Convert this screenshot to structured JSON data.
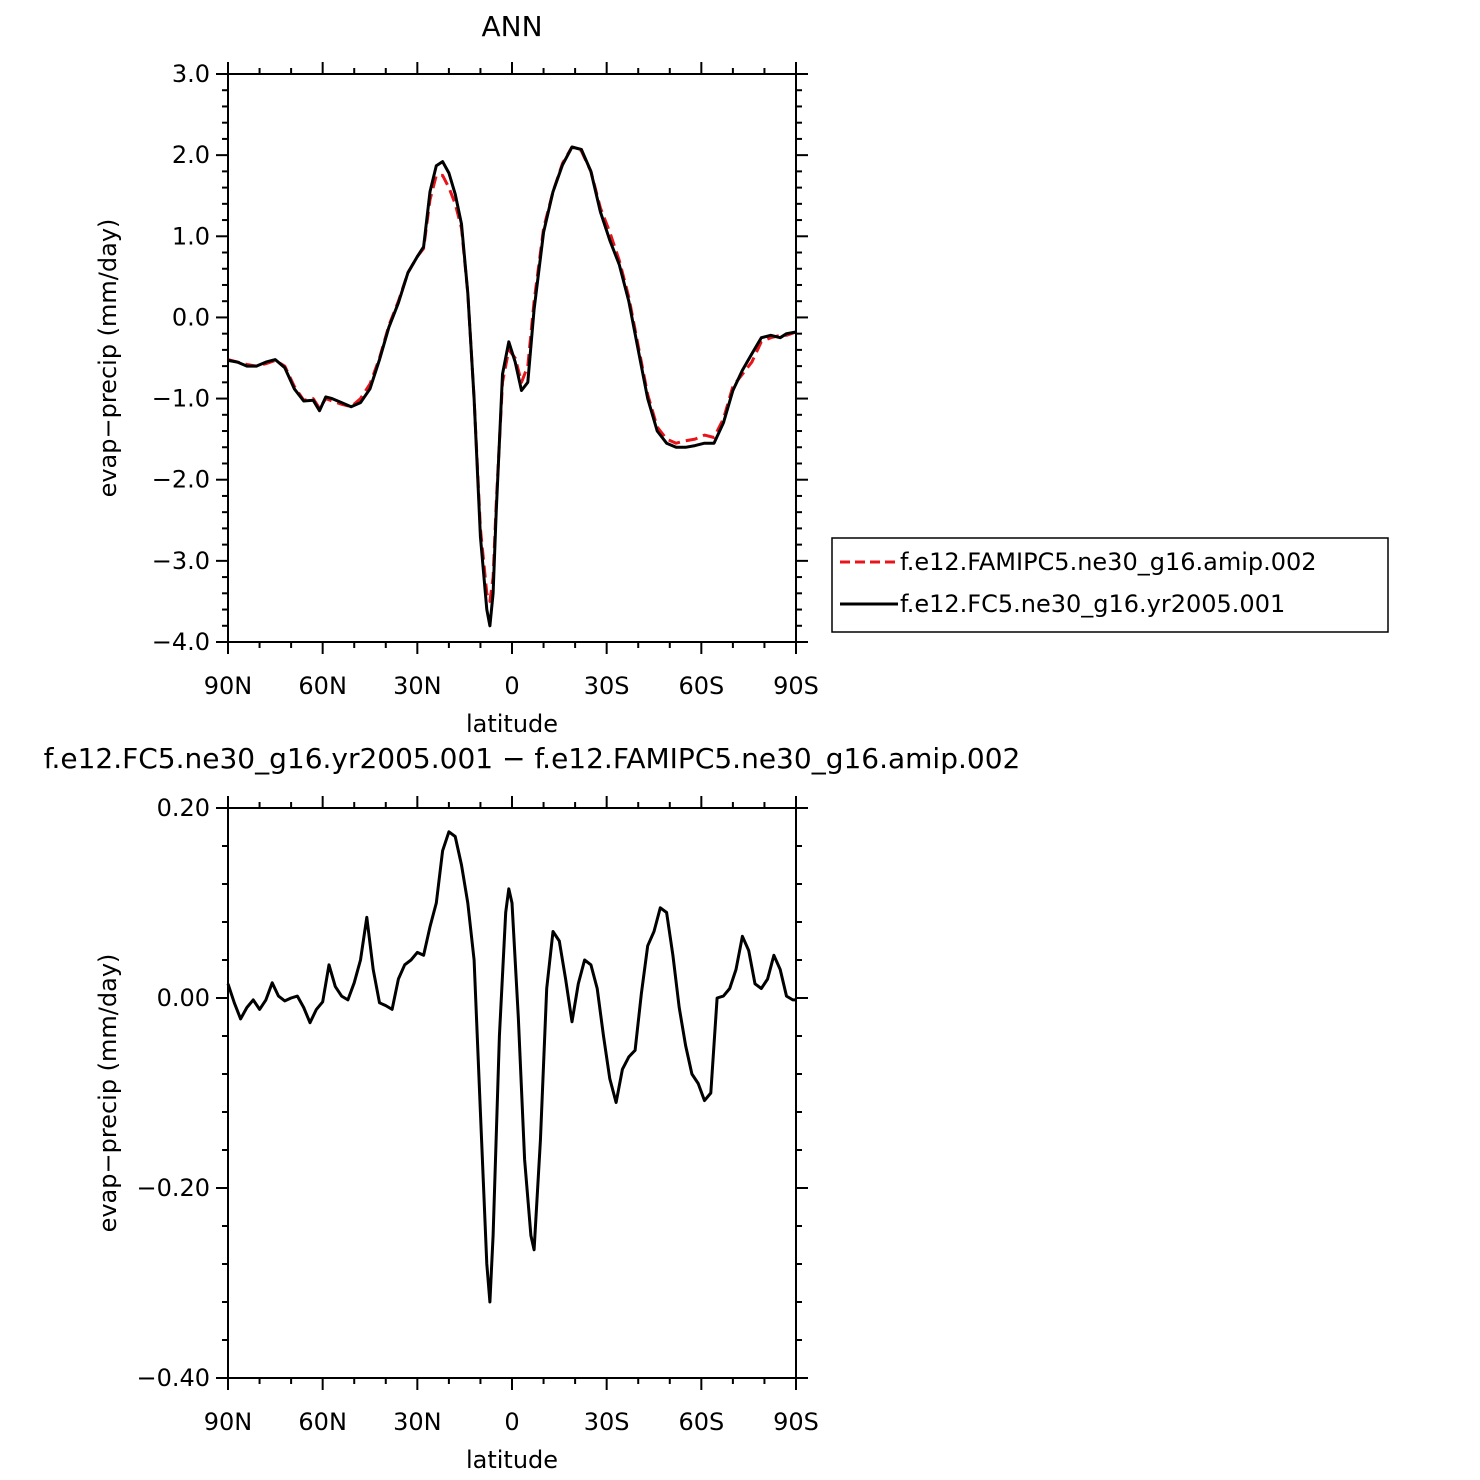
{
  "chart_data": [
    {
      "type": "line",
      "title": "ANN",
      "xlabel": "latitude",
      "ylabel": "evap−precip (mm/day)",
      "xlim": [
        90,
        -90
      ],
      "ylim": [
        -4.0,
        3.0
      ],
      "xticks": [
        90,
        60,
        30,
        0,
        -30,
        -60,
        -90
      ],
      "xtick_labels": [
        "90N",
        "60N",
        "30N",
        "0",
        "30S",
        "60S",
        "90S"
      ],
      "yticks": [
        3.0,
        2.0,
        1.0,
        0.0,
        -1.0,
        -2.0,
        -3.0,
        -4.0
      ],
      "ytick_labels": [
        "3.0",
        "2.0",
        "1.0",
        "0.0",
        "−1.0",
        "−2.0",
        "−3.0",
        "−4.0"
      ],
      "grid": false,
      "legend_position": "right",
      "series": [
        {
          "name": "f.e12.FAMIPC5.ne30_g16.amip.002",
          "color": "#e8141b",
          "dash": true,
          "points": [
            [
              90,
              -0.52
            ],
            [
              87,
              -0.55
            ],
            [
              84,
              -0.58
            ],
            [
              81,
              -0.6
            ],
            [
              78,
              -0.57
            ],
            [
              75,
              -0.53
            ],
            [
              72,
              -0.6
            ],
            [
              69,
              -0.85
            ],
            [
              66,
              -1.02
            ],
            [
              63,
              -1.0
            ],
            [
              61,
              -1.12
            ],
            [
              59,
              -1.0
            ],
            [
              57,
              -1.03
            ],
            [
              54,
              -1.07
            ],
            [
              51,
              -1.1
            ],
            [
              48,
              -1.0
            ],
            [
              45,
              -0.82
            ],
            [
              42,
              -0.5
            ],
            [
              39,
              -0.1
            ],
            [
              36,
              0.2
            ],
            [
              33,
              0.55
            ],
            [
              30,
              0.75
            ],
            [
              28,
              0.85
            ],
            [
              26,
              1.45
            ],
            [
              24,
              1.75
            ],
            [
              22,
              1.75
            ],
            [
              20,
              1.6
            ],
            [
              18,
              1.4
            ],
            [
              16,
              1.1
            ],
            [
              14,
              0.3
            ],
            [
              12,
              -1.0
            ],
            [
              10,
              -2.6
            ],
            [
              8,
              -3.4
            ],
            [
              7,
              -3.5
            ],
            [
              6,
              -3.2
            ],
            [
              5,
              -2.3
            ],
            [
              3,
              -0.8
            ],
            [
              1,
              -0.4
            ],
            [
              -1,
              -0.5
            ],
            [
              -3,
              -0.8
            ],
            [
              -5,
              -0.6
            ],
            [
              -7,
              0.2
            ],
            [
              -10,
              1.1
            ],
            [
              -13,
              1.55
            ],
            [
              -16,
              1.9
            ],
            [
              -19,
              2.1
            ],
            [
              -22,
              2.05
            ],
            [
              -25,
              1.8
            ],
            [
              -28,
              1.35
            ],
            [
              -31,
              1.05
            ],
            [
              -34,
              0.7
            ],
            [
              -37,
              0.25
            ],
            [
              -40,
              -0.35
            ],
            [
              -43,
              -0.95
            ],
            [
              -46,
              -1.35
            ],
            [
              -49,
              -1.5
            ],
            [
              -52,
              -1.55
            ],
            [
              -55,
              -1.52
            ],
            [
              -58,
              -1.5
            ],
            [
              -61,
              -1.45
            ],
            [
              -64,
              -1.48
            ],
            [
              -67,
              -1.25
            ],
            [
              -70,
              -0.85
            ],
            [
              -73,
              -0.7
            ],
            [
              -76,
              -0.55
            ],
            [
              -79,
              -0.3
            ],
            [
              -82,
              -0.25
            ],
            [
              -85,
              -0.22
            ],
            [
              -87,
              -0.22
            ],
            [
              -90,
              -0.18
            ]
          ]
        },
        {
          "name": "f.e12.FC5.ne30_g16.yr2005.001",
          "color": "#000000",
          "dash": false,
          "points": [
            [
              90,
              -0.53
            ],
            [
              87,
              -0.55
            ],
            [
              84,
              -0.6
            ],
            [
              81,
              -0.6
            ],
            [
              78,
              -0.55
            ],
            [
              75,
              -0.52
            ],
            [
              72,
              -0.62
            ],
            [
              69,
              -0.88
            ],
            [
              66,
              -1.03
            ],
            [
              63,
              -1.02
            ],
            [
              61,
              -1.15
            ],
            [
              59,
              -0.98
            ],
            [
              57,
              -1.0
            ],
            [
              54,
              -1.05
            ],
            [
              51,
              -1.1
            ],
            [
              48,
              -1.05
            ],
            [
              45,
              -0.88
            ],
            [
              42,
              -0.52
            ],
            [
              39,
              -0.12
            ],
            [
              36,
              0.18
            ],
            [
              33,
              0.55
            ],
            [
              30,
              0.75
            ],
            [
              28,
              0.87
            ],
            [
              26,
              1.55
            ],
            [
              24,
              1.87
            ],
            [
              22,
              1.92
            ],
            [
              20,
              1.78
            ],
            [
              18,
              1.52
            ],
            [
              16,
              1.15
            ],
            [
              14,
              0.3
            ],
            [
              12,
              -1.0
            ],
            [
              10,
              -2.7
            ],
            [
              8,
              -3.6
            ],
            [
              7,
              -3.8
            ],
            [
              6,
              -3.4
            ],
            [
              5,
              -2.4
            ],
            [
              3,
              -0.7
            ],
            [
              1,
              -0.3
            ],
            [
              -1,
              -0.55
            ],
            [
              -3,
              -0.9
            ],
            [
              -5,
              -0.8
            ],
            [
              -7,
              0.1
            ],
            [
              -10,
              1.05
            ],
            [
              -13,
              1.55
            ],
            [
              -16,
              1.88
            ],
            [
              -19,
              2.1
            ],
            [
              -22,
              2.07
            ],
            [
              -25,
              1.8
            ],
            [
              -28,
              1.3
            ],
            [
              -31,
              0.95
            ],
            [
              -34,
              0.65
            ],
            [
              -37,
              0.2
            ],
            [
              -40,
              -0.4
            ],
            [
              -43,
              -1.0
            ],
            [
              -46,
              -1.4
            ],
            [
              -49,
              -1.55
            ],
            [
              -52,
              -1.6
            ],
            [
              -55,
              -1.6
            ],
            [
              -58,
              -1.58
            ],
            [
              -61,
              -1.55
            ],
            [
              -64,
              -1.55
            ],
            [
              -67,
              -1.3
            ],
            [
              -70,
              -0.9
            ],
            [
              -73,
              -0.65
            ],
            [
              -76,
              -0.45
            ],
            [
              -79,
              -0.25
            ],
            [
              -82,
              -0.22
            ],
            [
              -85,
              -0.25
            ],
            [
              -87,
              -0.2
            ],
            [
              -90,
              -0.18
            ]
          ]
        }
      ]
    },
    {
      "type": "line",
      "title": "f.e12.FC5.ne30_g16.yr2005.001 − f.e12.FAMIPC5.ne30_g16.amip.002",
      "xlabel": "latitude",
      "ylabel": "evap−precip (mm/day)",
      "xlim": [
        90,
        -90
      ],
      "ylim": [
        -0.4,
        0.2
      ],
      "xticks": [
        90,
        60,
        30,
        0,
        -30,
        -60,
        -90
      ],
      "xtick_labels": [
        "90N",
        "60N",
        "30N",
        "0",
        "30S",
        "60S",
        "90S"
      ],
      "yticks": [
        0.2,
        0.0,
        -0.2,
        -0.4
      ],
      "ytick_labels": [
        "0.20",
        "0.00",
        "−0.20",
        "−0.40"
      ],
      "grid": false,
      "series": [
        {
          "color": "#000000",
          "dash": false,
          "points": [
            [
              90,
              0.015
            ],
            [
              88,
              -0.005
            ],
            [
              86,
              -0.022
            ],
            [
              84,
              -0.01
            ],
            [
              82,
              -0.002
            ],
            [
              80,
              -0.012
            ],
            [
              78,
              -0.002
            ],
            [
              76,
              0.016
            ],
            [
              74,
              0.002
            ],
            [
              72,
              -0.003
            ],
            [
              70,
              0.0
            ],
            [
              68,
              0.002
            ],
            [
              66,
              -0.01
            ],
            [
              64,
              -0.026
            ],
            [
              62,
              -0.012
            ],
            [
              60,
              -0.004
            ],
            [
              58,
              0.035
            ],
            [
              56,
              0.012
            ],
            [
              54,
              0.002
            ],
            [
              52,
              -0.002
            ],
            [
              50,
              0.016
            ],
            [
              48,
              0.04
            ],
            [
              46,
              0.085
            ],
            [
              44,
              0.03
            ],
            [
              42,
              -0.005
            ],
            [
              40,
              -0.008
            ],
            [
              38,
              -0.012
            ],
            [
              36,
              0.02
            ],
            [
              34,
              0.035
            ],
            [
              32,
              0.04
            ],
            [
              30,
              0.048
            ],
            [
              28,
              0.045
            ],
            [
              26,
              0.075
            ],
            [
              24,
              0.1
            ],
            [
              22,
              0.155
            ],
            [
              20,
              0.175
            ],
            [
              18,
              0.17
            ],
            [
              16,
              0.14
            ],
            [
              14,
              0.1
            ],
            [
              12,
              0.04
            ],
            [
              10,
              -0.12
            ],
            [
              8,
              -0.28
            ],
            [
              7,
              -0.32
            ],
            [
              6,
              -0.25
            ],
            [
              4,
              -0.04
            ],
            [
              2,
              0.09
            ],
            [
              1,
              0.115
            ],
            [
              0,
              0.1
            ],
            [
              -2,
              -0.02
            ],
            [
              -4,
              -0.17
            ],
            [
              -6,
              -0.25
            ],
            [
              -7,
              -0.265
            ],
            [
              -9,
              -0.15
            ],
            [
              -11,
              0.01
            ],
            [
              -13,
              0.07
            ],
            [
              -15,
              0.06
            ],
            [
              -17,
              0.02
            ],
            [
              -19,
              -0.025
            ],
            [
              -21,
              0.015
            ],
            [
              -23,
              0.04
            ],
            [
              -25,
              0.035
            ],
            [
              -27,
              0.01
            ],
            [
              -29,
              -0.04
            ],
            [
              -31,
              -0.085
            ],
            [
              -33,
              -0.11
            ],
            [
              -35,
              -0.075
            ],
            [
              -37,
              -0.062
            ],
            [
              -39,
              -0.055
            ],
            [
              -41,
              0.005
            ],
            [
              -43,
              0.055
            ],
            [
              -45,
              0.07
            ],
            [
              -47,
              0.095
            ],
            [
              -49,
              0.09
            ],
            [
              -51,
              0.045
            ],
            [
              -53,
              -0.01
            ],
            [
              -55,
              -0.05
            ],
            [
              -57,
              -0.08
            ],
            [
              -59,
              -0.09
            ],
            [
              -61,
              -0.108
            ],
            [
              -63,
              -0.1
            ],
            [
              -65,
              0.0
            ],
            [
              -67,
              0.002
            ],
            [
              -69,
              0.01
            ],
            [
              -71,
              0.03
            ],
            [
              -73,
              0.065
            ],
            [
              -75,
              0.05
            ],
            [
              -77,
              0.015
            ],
            [
              -79,
              0.01
            ],
            [
              -81,
              0.02
            ],
            [
              -83,
              0.045
            ],
            [
              -85,
              0.03
            ],
            [
              -87,
              0.002
            ],
            [
              -89,
              -0.002
            ],
            [
              -90,
              -0.002
            ]
          ]
        }
      ]
    }
  ],
  "legend": {
    "items": [
      "f.e12.FAMIPC5.ne30_g16.amip.002",
      "f.e12.FC5.ne30_g16.yr2005.001"
    ]
  }
}
